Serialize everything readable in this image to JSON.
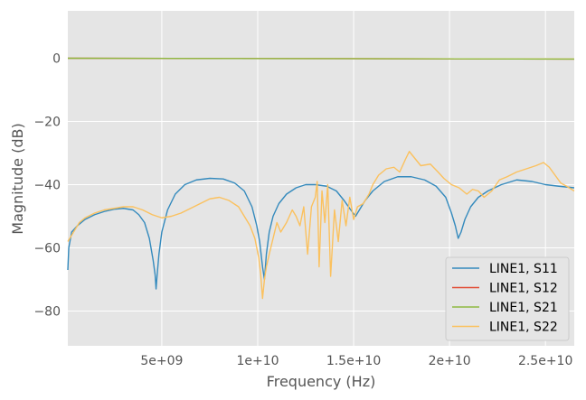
{
  "chart_data": {
    "type": "line",
    "title": "",
    "xlabel": "Frequency (Hz)",
    "ylabel": "Magnitude (dB)",
    "xlim": [
      100000000,
      26500000000
    ],
    "ylim": [
      -91,
      15
    ],
    "x_ticks": [
      {
        "value": 5000000000,
        "label": "5e+09"
      },
      {
        "value": 10000000000,
        "label": "1e+10"
      },
      {
        "value": 15000000000,
        "label": "1.5e+10"
      },
      {
        "value": 20000000000,
        "label": "2e+10"
      },
      {
        "value": 25000000000,
        "label": "2.5e+10"
      }
    ],
    "y_ticks": [
      {
        "value": 0,
        "label": "0"
      },
      {
        "value": -20,
        "label": "−20"
      },
      {
        "value": -40,
        "label": "−40"
      },
      {
        "value": -60,
        "label": "−60"
      },
      {
        "value": -80,
        "label": "−80"
      }
    ],
    "grid": true,
    "background": "#e5e5e5",
    "legend_position": "bottom-right",
    "series": [
      {
        "name": "LINE1, S11",
        "color": "#348abd",
        "points": [
          [
            100000000,
            -67
          ],
          [
            150000000,
            -60
          ],
          [
            300000000,
            -55
          ],
          [
            600000000,
            -53
          ],
          [
            1000000000,
            -51
          ],
          [
            1500000000,
            -49.5
          ],
          [
            2000000000,
            -48.5
          ],
          [
            2500000000,
            -47.8
          ],
          [
            3000000000,
            -47.5
          ],
          [
            3500000000,
            -48
          ],
          [
            3800000000,
            -49.5
          ],
          [
            4100000000,
            -52
          ],
          [
            4350000000,
            -57
          ],
          [
            4550000000,
            -64
          ],
          [
            4650000000,
            -68.5
          ],
          [
            4700000000,
            -73
          ],
          [
            4750000000,
            -69
          ],
          [
            4850000000,
            -62
          ],
          [
            5000000000,
            -55
          ],
          [
            5300000000,
            -48
          ],
          [
            5700000000,
            -43
          ],
          [
            6200000000,
            -40
          ],
          [
            6800000000,
            -38.5
          ],
          [
            7500000000,
            -38
          ],
          [
            8200000000,
            -38.2
          ],
          [
            8800000000,
            -39.5
          ],
          [
            9300000000,
            -42
          ],
          [
            9700000000,
            -47
          ],
          [
            9950000000,
            -53
          ],
          [
            10100000000,
            -58
          ],
          [
            10250000000,
            -66
          ],
          [
            10350000000,
            -70
          ],
          [
            10450000000,
            -62
          ],
          [
            10600000000,
            -55
          ],
          [
            10800000000,
            -50
          ],
          [
            11100000000,
            -46
          ],
          [
            11500000000,
            -43
          ],
          [
            12000000000,
            -41
          ],
          [
            12500000000,
            -40
          ],
          [
            13000000000,
            -40
          ],
          [
            13600000000,
            -40.5
          ],
          [
            14100000000,
            -42
          ],
          [
            14500000000,
            -45
          ],
          [
            14850000000,
            -48
          ],
          [
            15100000000,
            -50
          ],
          [
            15300000000,
            -48
          ],
          [
            15600000000,
            -45
          ],
          [
            16000000000,
            -42
          ],
          [
            16600000000,
            -39
          ],
          [
            17300000000,
            -37.5
          ],
          [
            18000000000,
            -37.5
          ],
          [
            18700000000,
            -38.5
          ],
          [
            19300000000,
            -40.5
          ],
          [
            19800000000,
            -44
          ],
          [
            20100000000,
            -49
          ],
          [
            20300000000,
            -53
          ],
          [
            20450000000,
            -57
          ],
          [
            20600000000,
            -55
          ],
          [
            20800000000,
            -51
          ],
          [
            21100000000,
            -47
          ],
          [
            21500000000,
            -44
          ],
          [
            22000000000,
            -42
          ],
          [
            22700000000,
            -40
          ],
          [
            23500000000,
            -38.5
          ],
          [
            24300000000,
            -39
          ],
          [
            25000000000,
            -40
          ],
          [
            25700000000,
            -40.5
          ],
          [
            26500000000,
            -41
          ]
        ]
      },
      {
        "name": "LINE1, S12",
        "color": "#e24a33",
        "points": [
          [
            100000000,
            0
          ],
          [
            26500000000,
            -0.25
          ]
        ]
      },
      {
        "name": "LINE1, S21",
        "color": "#8eba42",
        "points": [
          [
            100000000,
            0
          ],
          [
            26500000000,
            -0.25
          ]
        ]
      },
      {
        "name": "LINE1, S22",
        "color": "#fbc15e",
        "points": [
          [
            100000000,
            -58
          ],
          [
            200000000,
            -57
          ],
          [
            400000000,
            -55
          ],
          [
            700000000,
            -52
          ],
          [
            1000000000,
            -50.5
          ],
          [
            1500000000,
            -49
          ],
          [
            2000000000,
            -48
          ],
          [
            2500000000,
            -47.5
          ],
          [
            3000000000,
            -47
          ],
          [
            3500000000,
            -47
          ],
          [
            4000000000,
            -48
          ],
          [
            4500000000,
            -49.5
          ],
          [
            5000000000,
            -50.5
          ],
          [
            5500000000,
            -50
          ],
          [
            6000000000,
            -49
          ],
          [
            6500000000,
            -47.5
          ],
          [
            7000000000,
            -46
          ],
          [
            7500000000,
            -44.5
          ],
          [
            8000000000,
            -44
          ],
          [
            8500000000,
            -45
          ],
          [
            9000000000,
            -47
          ],
          [
            9300000000,
            -50
          ],
          [
            9600000000,
            -53
          ],
          [
            9850000000,
            -57
          ],
          [
            10050000000,
            -63
          ],
          [
            10150000000,
            -68
          ],
          [
            10250000000,
            -76
          ],
          [
            10350000000,
            -70
          ],
          [
            10450000000,
            -66
          ],
          [
            10600000000,
            -62
          ],
          [
            10800000000,
            -57
          ],
          [
            11000000000,
            -52
          ],
          [
            11200000000,
            -55
          ],
          [
            11500000000,
            -52
          ],
          [
            11800000000,
            -48
          ],
          [
            12000000000,
            -50
          ],
          [
            12200000000,
            -53
          ],
          [
            12400000000,
            -47
          ],
          [
            12600000000,
            -62
          ],
          [
            12800000000,
            -47
          ],
          [
            13000000000,
            -44
          ],
          [
            13100000000,
            -39
          ],
          [
            13200000000,
            -66
          ],
          [
            13350000000,
            -42
          ],
          [
            13500000000,
            -52
          ],
          [
            13650000000,
            -40
          ],
          [
            13800000000,
            -69
          ],
          [
            14000000000,
            -48
          ],
          [
            14200000000,
            -58
          ],
          [
            14400000000,
            -45
          ],
          [
            14600000000,
            -53
          ],
          [
            14800000000,
            -44
          ],
          [
            15000000000,
            -51
          ],
          [
            15200000000,
            -47
          ],
          [
            15500000000,
            -46
          ],
          [
            15800000000,
            -43
          ],
          [
            16000000000,
            -40
          ],
          [
            16300000000,
            -37
          ],
          [
            16700000000,
            -35
          ],
          [
            17100000000,
            -34.5
          ],
          [
            17400000000,
            -36
          ],
          [
            17700000000,
            -32
          ],
          [
            17900000000,
            -29.5
          ],
          [
            18100000000,
            -31
          ],
          [
            18500000000,
            -34
          ],
          [
            19000000000,
            -33.5
          ],
          [
            19400000000,
            -36
          ],
          [
            19700000000,
            -38
          ],
          [
            20100000000,
            -40
          ],
          [
            20500000000,
            -41
          ],
          [
            20900000000,
            -43
          ],
          [
            21200000000,
            -41.5
          ],
          [
            21500000000,
            -42
          ],
          [
            21800000000,
            -44
          ],
          [
            22200000000,
            -42
          ],
          [
            22600000000,
            -38.5
          ],
          [
            23000000000,
            -37.5
          ],
          [
            23500000000,
            -36
          ],
          [
            24000000000,
            -35
          ],
          [
            24500000000,
            -34
          ],
          [
            24900000000,
            -33
          ],
          [
            25200000000,
            -34.5
          ],
          [
            25500000000,
            -37
          ],
          [
            25800000000,
            -39.5
          ],
          [
            26100000000,
            -40.5
          ],
          [
            26500000000,
            -42
          ]
        ]
      }
    ]
  }
}
